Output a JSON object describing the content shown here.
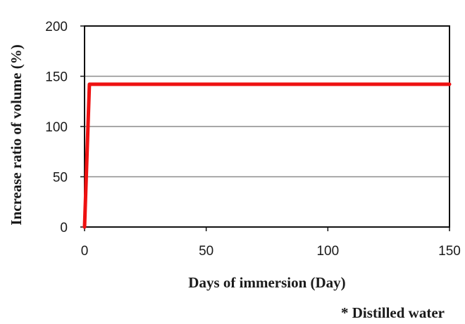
{
  "chart_data": {
    "type": "line",
    "xlabel": "Days of immersion (Day)",
    "ylabel": "Increase ratio of volume (%)",
    "xlim": [
      0,
      150
    ],
    "ylim": [
      0,
      200
    ],
    "xticks": [
      0,
      50,
      100,
      150
    ],
    "yticks": [
      0,
      50,
      100,
      150,
      200
    ],
    "grid": "horizontal",
    "series": [
      {
        "color": "#ee1111",
        "x": [
          0,
          2,
          150
        ],
        "y": [
          0,
          142,
          142
        ]
      }
    ],
    "annotation": "* Distilled water"
  }
}
